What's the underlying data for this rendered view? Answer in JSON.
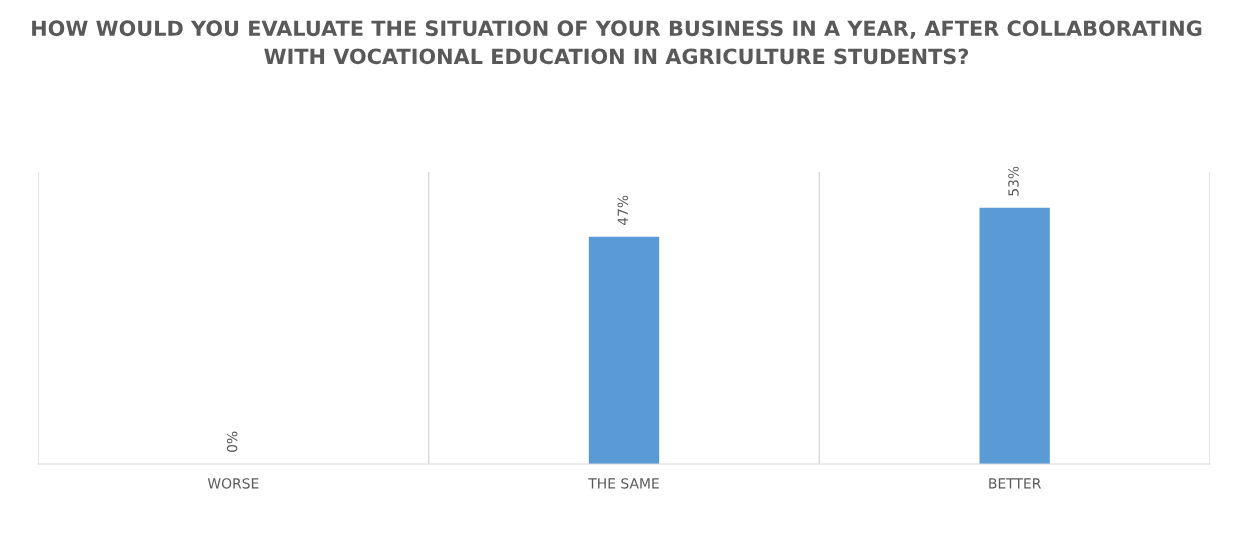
{
  "chart_data": {
    "type": "bar",
    "title": "HOW WOULD YOU EVALUATE THE SITUATION OF YOUR BUSINESS IN A YEAR, AFTER COLLABORATING WITH VOCATIONAL EDUCATION IN AGRICULTURE STUDENTS?",
    "categories": [
      "WORSE",
      "THE SAME",
      "BETTER"
    ],
    "values": [
      0,
      47,
      53
    ],
    "value_labels": [
      "0%",
      "47%",
      "53%"
    ],
    "color": "#5b9bd5",
    "grid": "x"
  }
}
